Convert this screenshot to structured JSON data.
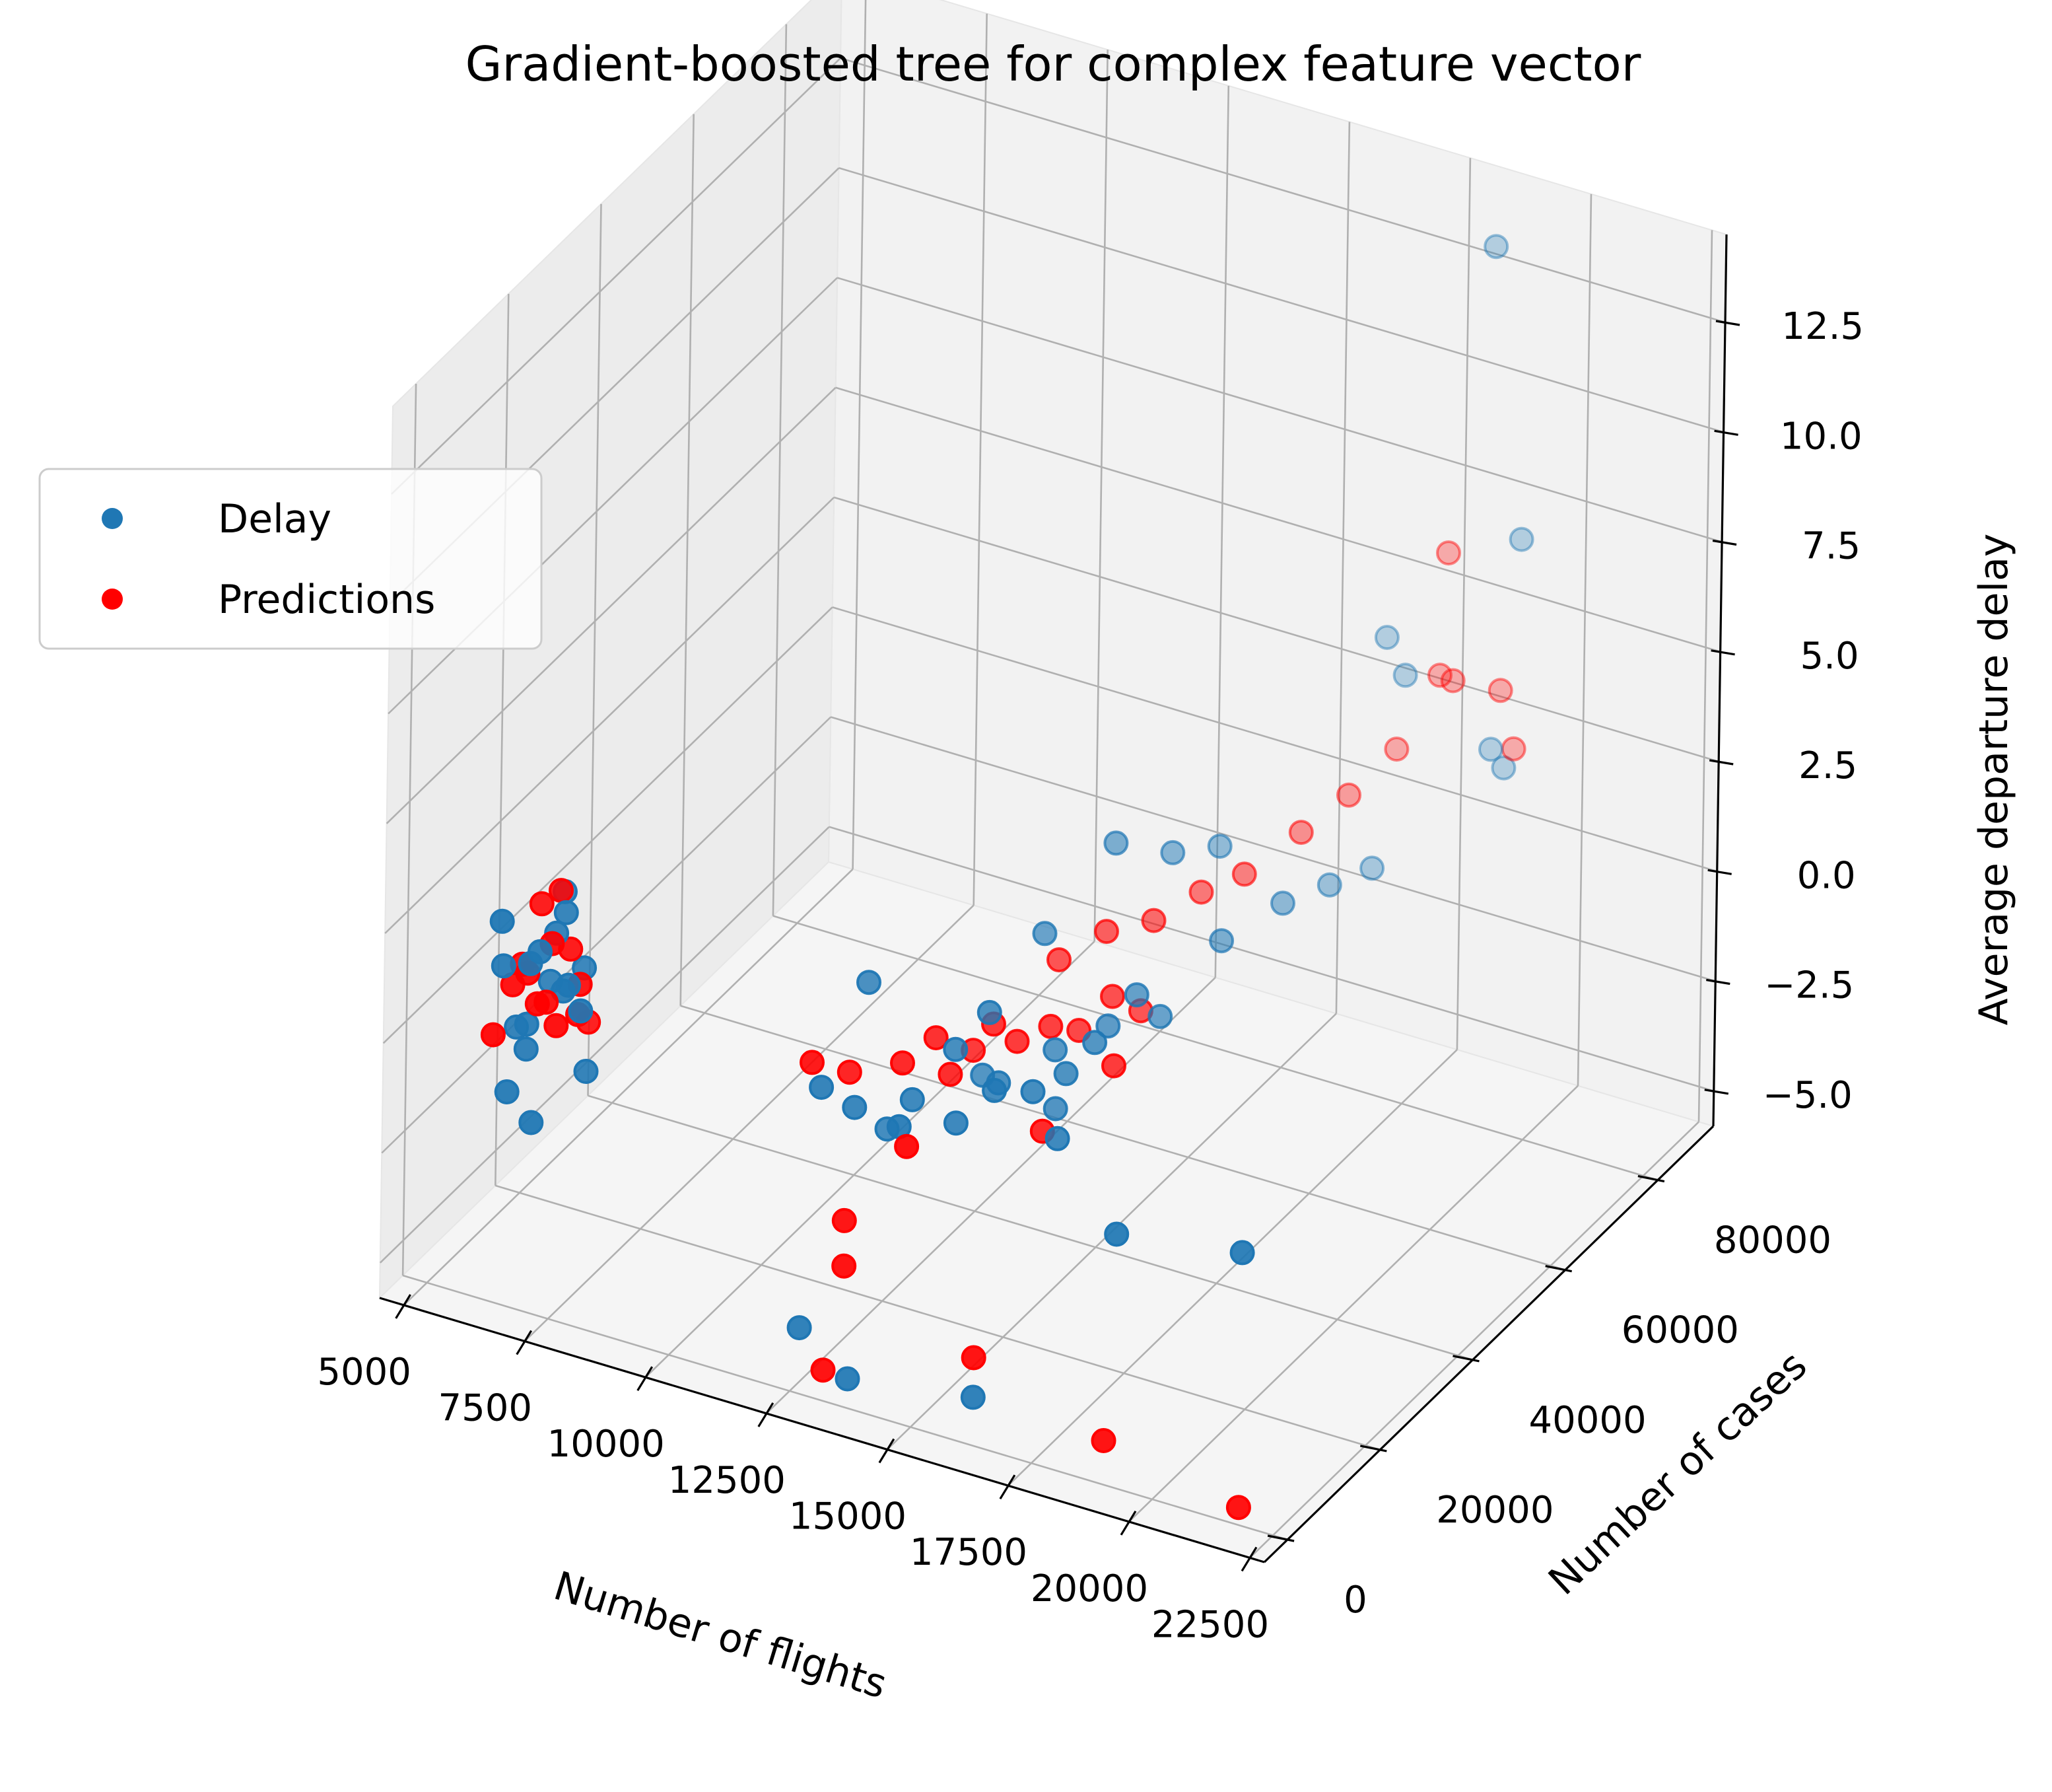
{
  "chart_data": {
    "type": "scatter",
    "projection": "3d",
    "title": "Gradient-boosted tree for complex feature vector",
    "xlabel": "Number of flights",
    "ylabel": "Number of cases",
    "zlabel": "Average departure delay",
    "xlim": [
      4500,
      22800
    ],
    "ylim": [
      -5000,
      92000
    ],
    "zlim": [
      -5.8,
      14.5
    ],
    "x_ticks": [
      5000,
      7500,
      10000,
      12500,
      15000,
      17500,
      20000,
      22500
    ],
    "x_tick_labels": [
      "5000",
      "7500",
      "10000",
      "12500",
      "15000",
      "17500",
      "20000",
      "22500"
    ],
    "y_ticks": [
      0,
      20000,
      40000,
      60000,
      80000
    ],
    "y_tick_labels": [
      "0",
      "20000",
      "40000",
      "60000",
      "80000"
    ],
    "z_ticks": [
      -5.0,
      -2.5,
      0.0,
      2.5,
      5.0,
      7.5,
      10.0,
      12.5
    ],
    "z_tick_labels": [
      "−5.0",
      "−2.5",
      "0.0",
      "2.5",
      "5.0",
      "7.5",
      "10.0",
      "12.5"
    ],
    "grid": true,
    "legend": {
      "position": "upper-left",
      "entries": [
        "Delay",
        "Predictions"
      ]
    },
    "series": [
      {
        "name": "Delay",
        "color": "#1f77b4",
        "points": [
          [
            6200,
            3000,
            1.5
          ],
          [
            6600,
            4000,
            0.2
          ],
          [
            6800,
            2500,
            1.8
          ],
          [
            6500,
            5000,
            -0.5
          ],
          [
            7000,
            6000,
            2.2
          ],
          [
            6900,
            3500,
            2.0
          ],
          [
            7200,
            5500,
            1.0
          ],
          [
            6400,
            2000,
            -1.2
          ],
          [
            7400,
            4500,
            1.3
          ],
          [
            7100,
            7000,
            2.6
          ],
          [
            6700,
            8000,
            0.8
          ],
          [
            7300,
            9000,
            1.2
          ],
          [
            6300,
            1500,
            2.7
          ],
          [
            7600,
            6500,
            -0.8
          ],
          [
            7800,
            3000,
            1.0
          ],
          [
            6600,
            12000,
            2.4
          ],
          [
            7000,
            1000,
            -1.6
          ],
          [
            6200,
            6000,
            -0.2
          ],
          [
            12500,
            6000,
            0.5
          ],
          [
            13000,
            8000,
            0.0
          ],
          [
            12600,
            15000,
            2.0
          ],
          [
            13300,
            12000,
            -0.8
          ],
          [
            14000,
            10000,
            0.3
          ],
          [
            14500,
            14000,
            1.2
          ],
          [
            14300,
            4000,
            0.4
          ],
          [
            15000,
            9000,
            0.2
          ],
          [
            15500,
            12000,
            0.8
          ],
          [
            15300,
            15000,
            0.6
          ],
          [
            15000,
            16000,
            2.0
          ],
          [
            16200,
            13000,
            0.9
          ],
          [
            16500,
            17000,
            1.0
          ],
          [
            16800,
            20000,
            1.5
          ],
          [
            17000,
            10000,
            0.4
          ],
          [
            15800,
            22000,
            0.8
          ],
          [
            16600,
            25000,
            1.3
          ],
          [
            16900,
            28000,
            1.8
          ],
          [
            17200,
            30000,
            1.2
          ],
          [
            14800,
            30000,
            2.3
          ],
          [
            15300,
            40000,
            3.5
          ],
          [
            16000,
            45000,
            3.0
          ],
          [
            16500,
            50000,
            2.8
          ],
          [
            17500,
            40000,
            2.0
          ],
          [
            18000,
            48000,
            2.2
          ],
          [
            18300,
            55000,
            2.0
          ],
          [
            18700,
            60000,
            2.0
          ],
          [
            18000,
            70000,
            6.0
          ],
          [
            18200,
            72000,
            5.0
          ],
          [
            19800,
            80000,
            7.8
          ],
          [
            19500,
            80000,
            2.5
          ],
          [
            19700,
            75000,
            3.5
          ],
          [
            13500,
            2000,
            -5.4
          ],
          [
            16000,
            3000,
            -5.1
          ],
          [
            12400,
            3000,
            -4.7
          ],
          [
            19000,
            2000,
            -0.3
          ],
          [
            21500,
            3000,
            0.0
          ],
          [
            19000,
            82000,
            14.0
          ],
          [
            16200,
            18000,
            0.0
          ],
          [
            14500,
            20000,
            0.0
          ]
        ]
      },
      {
        "name": "Predictions",
        "color": "#ff0000",
        "points": [
          [
            6300,
            4000,
            1.0
          ],
          [
            6700,
            3000,
            1.5
          ],
          [
            6900,
            5000,
            0.7
          ],
          [
            7100,
            4000,
            2.2
          ],
          [
            7300,
            3000,
            0.5
          ],
          [
            7500,
            6000,
            1.2
          ],
          [
            6500,
            8000,
            2.5
          ],
          [
            6800,
            9000,
            2.8
          ],
          [
            7200,
            7000,
            1.8
          ],
          [
            6100,
            2000,
            0.0
          ],
          [
            7400,
            9000,
            0.0
          ],
          [
            6400,
            5000,
            1.4
          ],
          [
            7000,
            2000,
            1.0
          ],
          [
            7600,
            4500,
            0.7
          ],
          [
            12300,
            6000,
            1.0
          ],
          [
            12700,
            10000,
            0.5
          ],
          [
            13600,
            12000,
            0.8
          ],
          [
            14000,
            15000,
            1.2
          ],
          [
            14400,
            14000,
            0.6
          ],
          [
            14900,
            18000,
            1.5
          ],
          [
            15200,
            20000,
            1.0
          ],
          [
            15700,
            22000,
            1.3
          ],
          [
            16000,
            25000,
            1.0
          ],
          [
            16400,
            28000,
            1.6
          ],
          [
            16800,
            30000,
            1.2
          ],
          [
            17200,
            20000,
            1.1
          ],
          [
            15100,
            30000,
            1.8
          ],
          [
            15600,
            35000,
            2.1
          ],
          [
            16100,
            40000,
            2.0
          ],
          [
            16600,
            45000,
            2.3
          ],
          [
            17200,
            48000,
            2.6
          ],
          [
            17700,
            55000,
            3.0
          ],
          [
            18200,
            60000,
            3.5
          ],
          [
            18700,
            65000,
            4.2
          ],
          [
            19100,
            70000,
            5.5
          ],
          [
            18900,
            75000,
            4.8
          ],
          [
            19700,
            80000,
            3.0
          ],
          [
            19600,
            78000,
            4.5
          ],
          [
            18300,
            80000,
            7.0
          ],
          [
            13200,
            4000,
            -2.1
          ],
          [
            13300,
            3000,
            -3.0
          ],
          [
            12900,
            3000,
            -5.5
          ],
          [
            16000,
            3000,
            -4.2
          ],
          [
            18700,
            3000,
            -5.2
          ],
          [
            21500,
            3000,
            -5.8
          ],
          [
            14600,
            2500,
            0.2
          ],
          [
            16500,
            12000,
            0.2
          ],
          [
            14300,
            20000,
            0.5
          ]
        ]
      }
    ]
  }
}
